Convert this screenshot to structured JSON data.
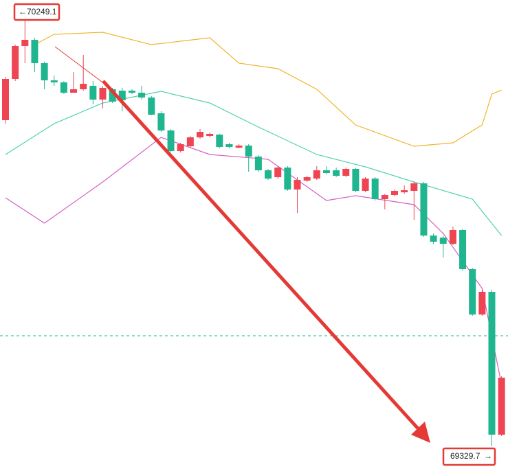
{
  "chart_data": {
    "type": "candlestick",
    "ylim": [
      69281.7,
      70275.3
    ],
    "up_color": "#ef4452",
    "down_color": "#1fb58e",
    "high_label": 70249.1,
    "low_label": 69329.7,
    "price_line": 69563.9,
    "open": [
      70020.7,
      70108.0,
      70177.8,
      70190.9,
      70141.5,
      70105.1,
      70100.7,
      70078.9,
      70086.2,
      70093.5,
      70064.3,
      70086.2,
      70083.3,
      70083.3,
      70078.9,
      70068.7,
      70035.3,
      69998.9,
      69955.2,
      69965.4,
      69984.3,
      69987.2,
      69990.2,
      69969.8,
      69962.5,
      69966.9,
      69943.6,
      69914.5,
      69899.9,
      69920.3,
      69873.8,
      69892.7,
      69897.0,
      69914.5,
      69914.5,
      69902.9,
      69917.4,
      69870.9,
      69897.0,
      69853.4,
      69862.1,
      69867.9,
      69870.9,
      69886.9,
      69776.3,
      69771.9,
      69758.8,
      69788.0,
      69705.0,
      69609.0,
      69657.0,
      69354.4
    ],
    "high": [
      70112.4,
      70180.7,
      70249.1,
      70195.3,
      70144.4,
      70115.3,
      70103.6,
      70122.5,
      70158.9,
      70103.6,
      70093.5,
      70089.1,
      70089.1,
      70086.2,
      70093.5,
      70071.6,
      70039.6,
      70001.8,
      69972.7,
      69987.2,
      70001.8,
      69994.5,
      69991.6,
      69972.7,
      69969.8,
      69969.8,
      69946.5,
      69917.4,
      69923.2,
      69923.2,
      69899.9,
      69902.9,
      69923.2,
      69923.2,
      69920.3,
      69920.3,
      69920.3,
      69899.9,
      69899.9,
      69865.0,
      69873.8,
      69882.5,
      69889.8,
      69889.8,
      69780.7,
      69774.8,
      69795.2,
      69790.8,
      69707.9,
      69661.4,
      69661.4,
      69478.1
    ],
    "low": [
      70013.4,
      70103.6,
      70141.5,
      70122.5,
      70086.2,
      70093.5,
      70076.0,
      70078.9,
      70083.3,
      70054.2,
      70045.4,
      70057.1,
      70039.6,
      70076.0,
      70064.3,
      70030.9,
      69996.0,
      69952.3,
      69952.3,
      69962.5,
      69981.4,
      69984.3,
      69961.1,
      69961.1,
      69961.1,
      69911.6,
      69911.6,
      69894.1,
      69897.0,
      69870.9,
      69824.3,
      69889.8,
      69894.1,
      69905.8,
      69899.9,
      69899.9,
      69867.9,
      69867.9,
      69850.5,
      69831.6,
      69859.2,
      69865.0,
      69809.8,
      69773.4,
      69758.8,
      69729.7,
      69755.9,
      69702.1,
      69606.1,
      69606.1,
      69329.7,
      69351.5
    ],
    "close": [
      70108.0,
      70177.8,
      70190.9,
      70141.5,
      70105.1,
      70100.7,
      70078.9,
      70086.2,
      70097.8,
      70064.3,
      70089.1,
      70060.0,
      70062.9,
      70078.9,
      70068.7,
      70032.3,
      69998.9,
      69955.2,
      69969.8,
      69984.3,
      69996.0,
      69991.6,
      69964.0,
      69964.0,
      69966.9,
      69943.6,
      69914.5,
      69897.0,
      69920.3,
      69873.8,
      69894.1,
      69899.9,
      69914.5,
      69908.7,
      69902.9,
      69917.4,
      69870.9,
      69897.0,
      69853.4,
      69862.1,
      69870.9,
      69872.3,
      69886.9,
      69776.3,
      69763.2,
      69758.8,
      69788.0,
      69705.0,
      69609.0,
      69657.0,
      69354.4,
      69475.2
    ],
    "bands": [
      {
        "color": "#f0b429",
        "x": [
          3,
          5,
          10,
          15,
          21,
          24,
          28,
          32,
          36,
          42,
          46,
          49,
          50,
          51
        ],
        "values": [
          70180.7,
          70202.6,
          70206.9,
          70180.7,
          70195.3,
          70141.5,
          70129.8,
          70086.2,
          70010.5,
          69965.4,
          69972.7,
          70010.5,
          70076.0,
          70084.7
        ]
      },
      {
        "color": "#4fd1b0",
        "x": [
          0,
          5,
          10,
          16,
          21,
          26,
          32,
          37,
          42,
          48,
          51
        ],
        "values": [
          69948.0,
          70013.4,
          70057.1,
          70081.8,
          70057.1,
          70006.2,
          69948.0,
          69921.8,
          69889.8,
          69853.4,
          69776.3
        ]
      },
      {
        "color": "#d45fc4",
        "x": [
          0,
          4,
          10,
          16,
          21,
          27,
          30,
          33,
          36,
          42,
          45,
          49,
          51
        ],
        "values": [
          69856.3,
          69802.5,
          69889.8,
          69984.3,
          69948.0,
          69937.8,
          69894.1,
          69850.5,
          69860.7,
          69841.8,
          69780.7,
          69664.3,
          69460.6
        ]
      }
    ]
  }
}
